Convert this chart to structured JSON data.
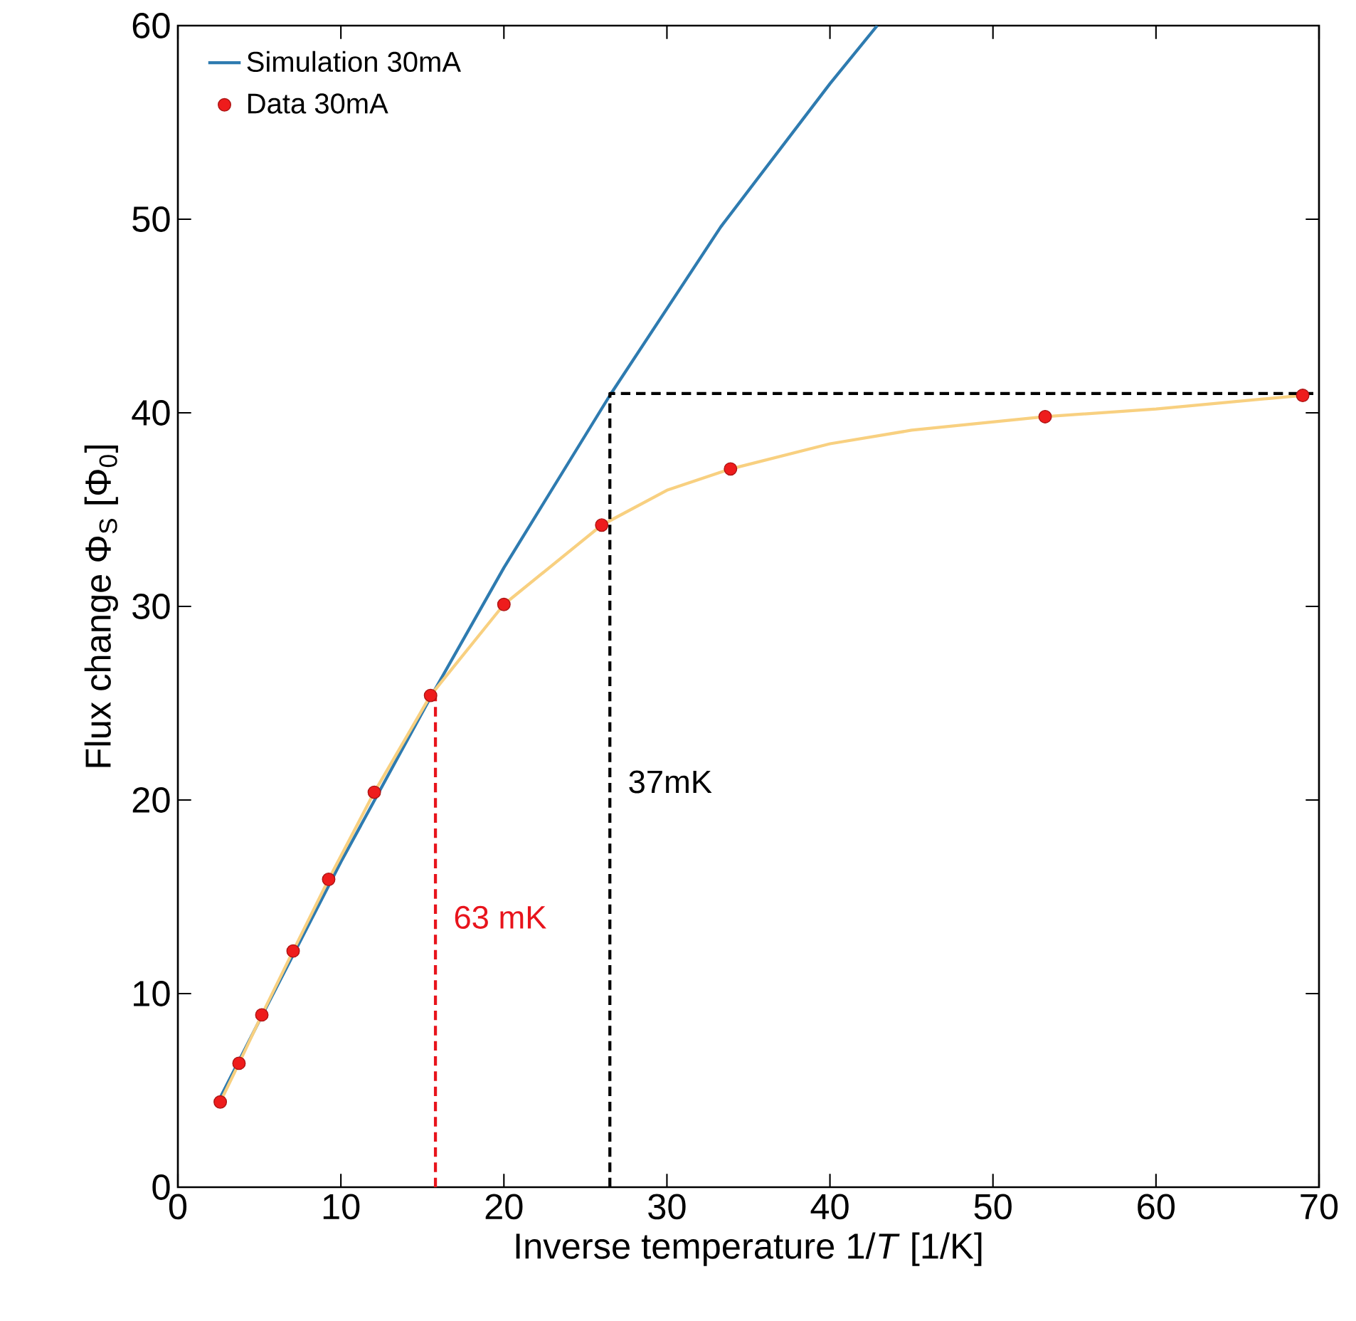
{
  "chart_data": {
    "type": "line",
    "xlabel": "Inverse temperature 1/*T* [1/K]",
    "ylabel": "Flux change Φ$_{S}$ [Φ$_{0}$]",
    "xlim": [
      0,
      70
    ],
    "ylim": [
      0,
      60
    ],
    "xticks": [
      0,
      10,
      20,
      30,
      40,
      50,
      60,
      70
    ],
    "yticks": [
      0,
      10,
      20,
      30,
      40,
      50,
      60
    ],
    "grid": false,
    "legend": "top left",
    "series": [
      {
        "name": "Simulation 30mA",
        "color": "#2e7bb0",
        "marker": "none",
        "line_style": "solid",
        "x": [
          2.4,
          5,
          10,
          15.5,
          20,
          26.5,
          33.3,
          40,
          42.9
        ],
        "values": [
          4.3,
          8.6,
          16.8,
          25.3,
          32,
          40.9,
          49.6,
          57,
          60
        ]
      },
      {
        "color": "#f8d080",
        "marker": "none",
        "line_style": "solid",
        "x": [
          2.6,
          3.75,
          5.15,
          7.07,
          9.25,
          12.05,
          15.5,
          20,
          26,
          30,
          33.9,
          40,
          45,
          53.2,
          60,
          69
        ],
        "values": [
          4.4,
          6.4,
          8.9,
          12.2,
          15.9,
          20.4,
          25.4,
          30.1,
          34.2,
          36,
          37.1,
          38.4,
          39.1,
          39.8,
          40.2,
          40.9
        ]
      },
      {
        "color": "#e8141c",
        "marker": "none",
        "line_style": "dashed",
        "x": [
          15.8,
          15.8
        ],
        "values": [
          0,
          25.4
        ]
      },
      {
        "color": "#000000",
        "marker": "none",
        "line_style": "dashed",
        "x": [
          26.5,
          26.5,
          70
        ],
        "values": [
          0,
          41,
          41
        ]
      },
      {
        "name": "Data 30mA",
        "type": "scatter",
        "color": "#ee1c1c",
        "marker": "circle",
        "x": [
          2.6,
          3.75,
          5.15,
          7.07,
          9.25,
          12.05,
          15.5,
          20,
          26,
          33.9,
          53.2,
          69
        ],
        "values": [
          4.4,
          6.4,
          8.9,
          12.2,
          15.9,
          20.4,
          25.4,
          30.1,
          34.2,
          37.1,
          39.8,
          40.9
        ]
      }
    ],
    "annotations": [
      {
        "text": "63 mK",
        "x": 15.8,
        "y": 13
      },
      {
        "text": "37mK",
        "x": 26.5,
        "y": 20
      }
    ]
  }
}
